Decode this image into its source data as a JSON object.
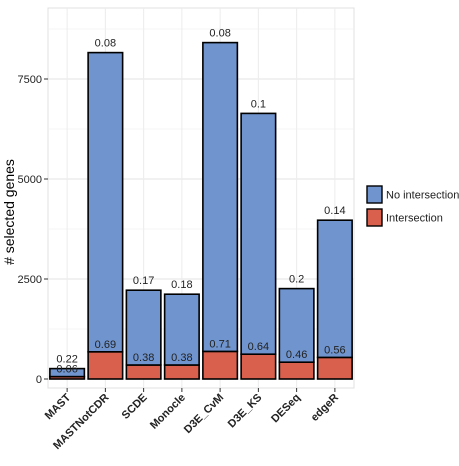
{
  "chart_data": {
    "type": "bar",
    "stacked": true,
    "ylabel": "# selected genes",
    "xlabel": "",
    "ylim": [
      0,
      9000
    ],
    "yticks": [
      0,
      2500,
      5000,
      7500
    ],
    "grid": true,
    "legend_position": "right",
    "categories": [
      "MAST",
      "MASTNotCDR",
      "SCDE",
      "Monocle",
      "D3E_CvM",
      "D3E_KS",
      "DESeq",
      "edgeR"
    ],
    "series": [
      {
        "name": "No intersection",
        "color": "#7094cd",
        "values": [
          200,
          7480,
          1870,
          1770,
          7720,
          6020,
          1840,
          3430
        ],
        "labels": [
          "0.22",
          "0.08",
          "0.17",
          "0.18",
          "0.08",
          "0.1",
          "0.2",
          "0.14"
        ]
      },
      {
        "name": "Intersection",
        "color": "#d9604c",
        "values": [
          60,
          680,
          350,
          350,
          690,
          620,
          420,
          540
        ],
        "labels": [
          "0.06",
          "0.69",
          "0.38",
          "0.38",
          "0.71",
          "0.64",
          "0.46",
          "0.56"
        ]
      }
    ]
  }
}
